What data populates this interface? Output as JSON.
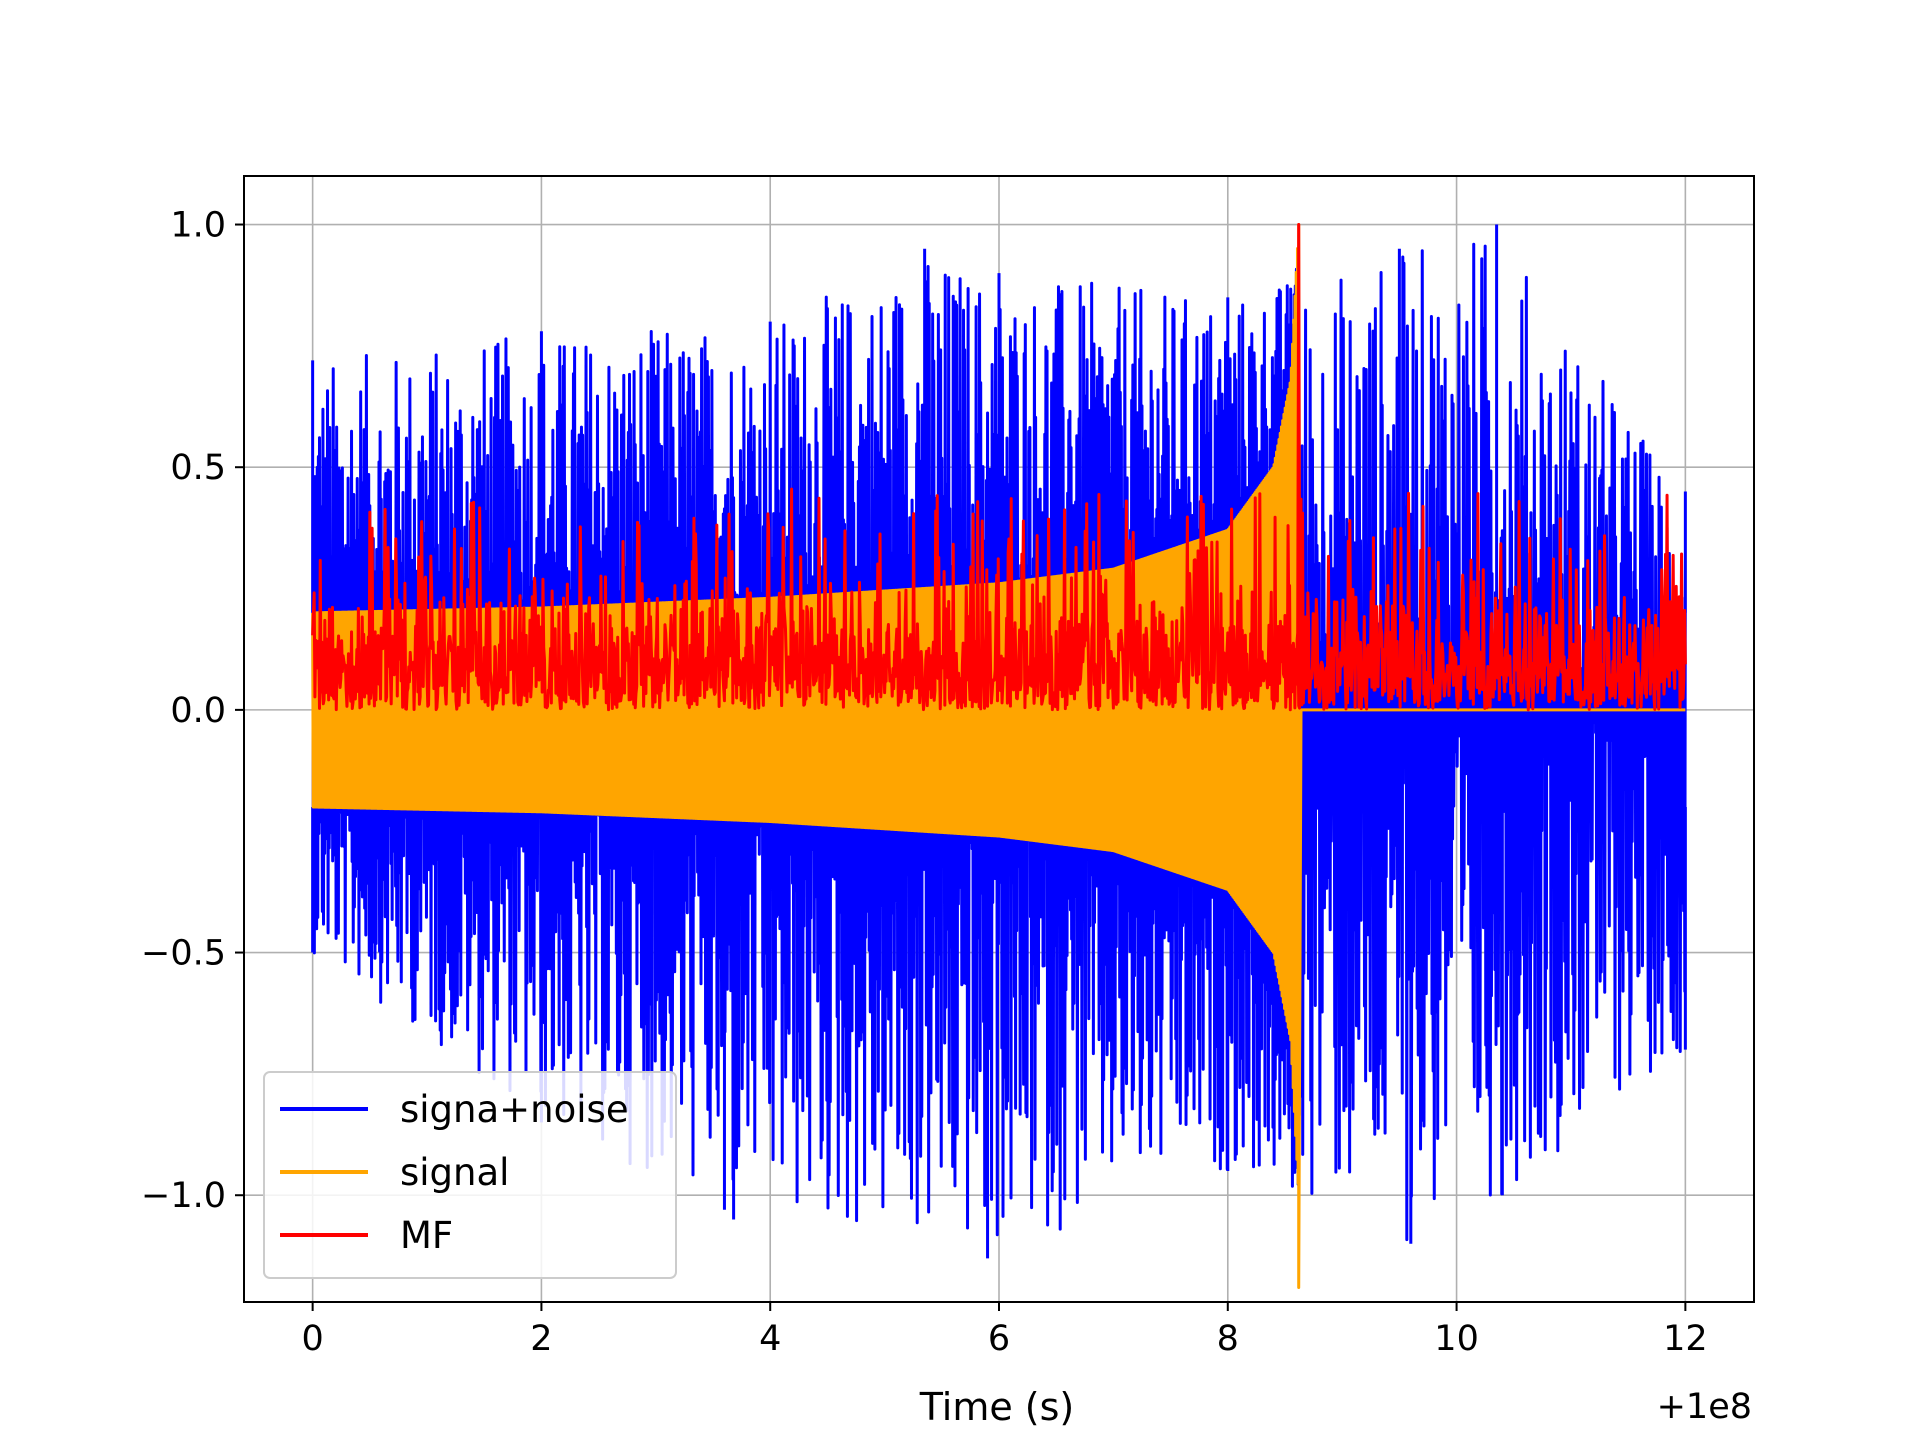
{
  "chart_data": {
    "type": "line",
    "title": "",
    "xlabel": "Time (s)",
    "ylabel": "",
    "x_offset_label": "+1e8",
    "xlim": [
      -0.6,
      12.6
    ],
    "ylim": [
      -1.22,
      1.1
    ],
    "xticks": [
      0,
      2,
      4,
      6,
      8,
      10,
      12
    ],
    "xtick_labels": [
      "0",
      "2",
      "4",
      "6",
      "8",
      "10",
      "12"
    ],
    "yticks": [
      1.0,
      0.5,
      0.0,
      -0.5,
      -1.0
    ],
    "ytick_labels": [
      "1.0",
      "0.5",
      "0.0",
      "−0.5",
      "−1.0"
    ],
    "grid": true,
    "legend_position": "lower-left",
    "series": [
      {
        "name": "signa+noise",
        "color": "#0000ff",
        "description_points": {
          "t_start": 0,
          "t_end": 12,
          "upper_envelope": [
            [
              0,
              0.72
            ],
            [
              2,
              0.78
            ],
            [
              4,
              0.8
            ],
            [
              5.35,
              0.95
            ],
            [
              6,
              0.9
            ],
            [
              8,
              0.85
            ],
            [
              9.5,
              0.95
            ],
            [
              10.35,
              1.0
            ],
            [
              12,
              0.45
            ]
          ],
          "lower_envelope": [
            [
              0,
              -0.5
            ],
            [
              2,
              -0.85
            ],
            [
              3.6,
              -1.03
            ],
            [
              3.68,
              -1.05
            ],
            [
              5.9,
              -1.13
            ],
            [
              8,
              -0.95
            ],
            [
              9.6,
              -1.1
            ],
            [
              10.4,
              -1.0
            ],
            [
              12,
              -0.7
            ]
          ]
        }
      },
      {
        "name": "signal",
        "color": "#ffa500",
        "chirp_end": 8.62,
        "envelope": [
          [
            0,
            0.2
          ],
          [
            2,
            0.21
          ],
          [
            4,
            0.23
          ],
          [
            6,
            0.26
          ],
          [
            7,
            0.29
          ],
          [
            8,
            0.37
          ],
          [
            8.4,
            0.5
          ],
          [
            8.55,
            0.68
          ],
          [
            8.62,
            1.0
          ]
        ],
        "min_value": -1.19
      },
      {
        "name": "MF",
        "color": "#ff0000",
        "baseline_range": [
          0.0,
          0.22
        ],
        "spike_range": [
          0.3,
          0.45
        ],
        "peak": [
          8.62,
          1.0
        ]
      }
    ]
  }
}
